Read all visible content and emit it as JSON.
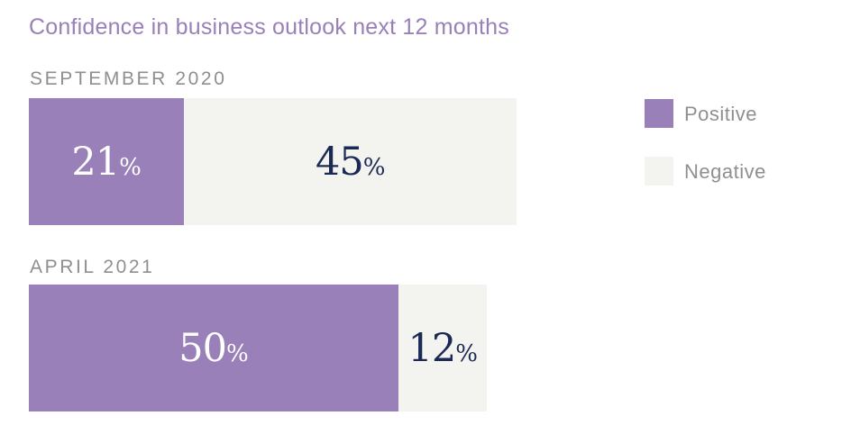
{
  "chart_data": {
    "type": "bar",
    "orientation": "horizontal-stacked",
    "title": "Confidence in business outlook next 12 months",
    "categories": [
      "SEPTEMBER 2020",
      "APRIL 2021"
    ],
    "series": [
      {
        "name": "Positive",
        "values": [
          21,
          50
        ],
        "color": "#9a80b8"
      },
      {
        "name": "Negative",
        "values": [
          45,
          12
        ],
        "color": "#f3f3f0"
      }
    ],
    "value_suffix": "%",
    "label_colors": {
      "Positive": "#ffffff",
      "Negative": "#1b2a55"
    },
    "legend_placement": "right",
    "grid": false
  }
}
